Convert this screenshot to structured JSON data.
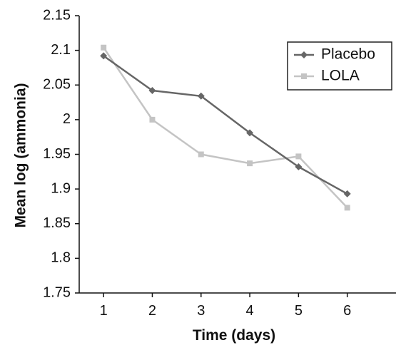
{
  "chart_data": {
    "type": "line",
    "xlabel": "Time (days)",
    "ylabel": "Mean log (ammonia)",
    "x": [
      1,
      2,
      3,
      4,
      5,
      6
    ],
    "xlim": [
      0.5,
      7
    ],
    "ylim": [
      1.75,
      2.15
    ],
    "yticks": [
      "1.75",
      "1.8",
      "1.85",
      "1.9",
      "1.95",
      "2",
      "2.05",
      "2.1",
      "2.15"
    ],
    "xticks": [
      "1",
      "2",
      "3",
      "4",
      "5",
      "6"
    ],
    "grid": false,
    "legend_position": "top-right",
    "series": [
      {
        "name": "Placebo",
        "values": [
          2.092,
          2.042,
          2.034,
          1.981,
          1.932,
          1.893
        ],
        "color": "#666666",
        "marker": "diamond"
      },
      {
        "name": "LOLA",
        "values": [
          2.104,
          2.0,
          1.95,
          1.937,
          1.947,
          1.873
        ],
        "color": "#c4c4c4",
        "marker": "square"
      }
    ]
  }
}
